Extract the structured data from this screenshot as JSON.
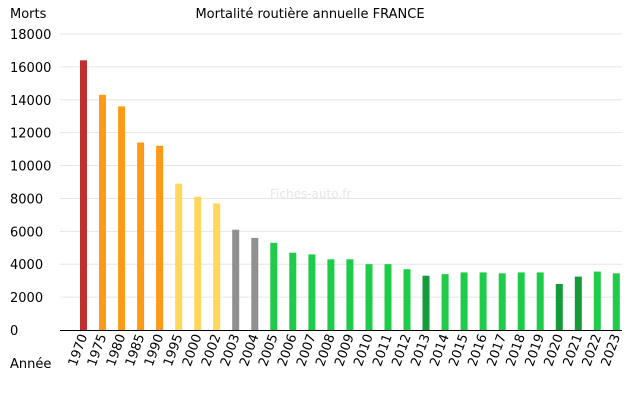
{
  "chart_data": {
    "type": "bar",
    "title": "Mortalité routière annuelle FRANCE",
    "xlabel": "Année",
    "ylabel": "Morts",
    "watermark": "Fiches-auto.fr",
    "ylim": [
      0,
      18000
    ],
    "yticks": [
      0,
      2000,
      4000,
      6000,
      8000,
      10000,
      12000,
      14000,
      16000,
      18000
    ],
    "grid": true,
    "categories": [
      "1970",
      "1975",
      "1980",
      "1985",
      "1990",
      "1995",
      "2000",
      "2002",
      "2003",
      "2004",
      "2005",
      "2006",
      "2007",
      "2008",
      "2009",
      "2010",
      "2011",
      "2012",
      "2013",
      "2014",
      "2015",
      "2016",
      "2017",
      "2018",
      "2019",
      "2020",
      "2021",
      "2022",
      "2023"
    ],
    "values": [
      16400,
      14300,
      13600,
      11400,
      11200,
      8900,
      8100,
      7700,
      6100,
      5600,
      5300,
      4700,
      4600,
      4300,
      4300,
      4000,
      4000,
      3700,
      3300,
      3400,
      3500,
      3500,
      3450,
      3500,
      3500,
      2800,
      3250,
      3550,
      3450
    ],
    "colors": [
      "#c03030",
      "#ff9a18",
      "#ff9a18",
      "#ff9a18",
      "#ff9a18",
      "#ffd75a",
      "#ffd75a",
      "#ffd75a",
      "#909090",
      "#909090",
      "#1fcc4a",
      "#1fcc4a",
      "#1fcc4a",
      "#1fcc4a",
      "#1fcc4a",
      "#1fcc4a",
      "#1fcc4a",
      "#1fcc4a",
      "#159a3a",
      "#1fcc4a",
      "#1fcc4a",
      "#1fcc4a",
      "#1fcc4a",
      "#1fcc4a",
      "#1fcc4a",
      "#159a3a",
      "#159a3a",
      "#1fcc4a",
      "#1fcc4a"
    ]
  }
}
